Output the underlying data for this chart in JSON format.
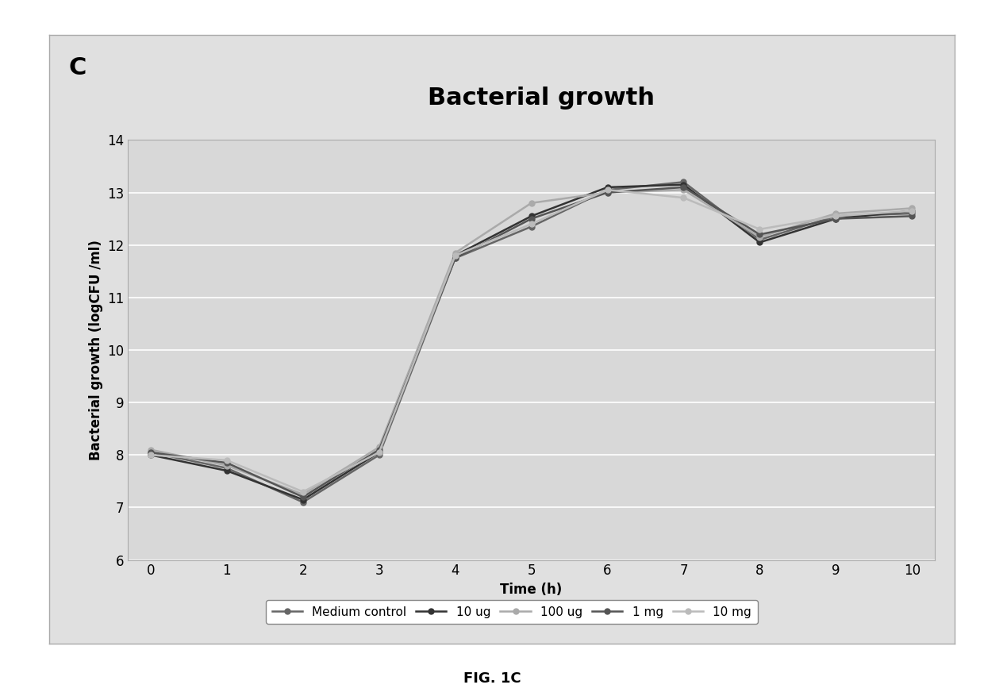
{
  "title": "Bacterial growth",
  "panel_label": "C",
  "xlabel": "Time (h)",
  "ylabel": "Bacterial growth (logCFU /ml)",
  "fig_label": "FIG. 1C",
  "x": [
    0,
    1,
    2,
    3,
    4,
    5,
    6,
    7,
    8,
    9,
    10
  ],
  "series": {
    "Medium control": [
      8.05,
      7.75,
      7.1,
      8.0,
      11.75,
      12.35,
      13.05,
      13.2,
      12.1,
      12.55,
      12.6
    ],
    "10 ug": [
      8.0,
      7.7,
      7.15,
      8.05,
      11.8,
      12.55,
      13.1,
      13.15,
      12.05,
      12.5,
      12.65
    ],
    "100 ug": [
      8.1,
      7.8,
      7.25,
      8.15,
      11.85,
      12.8,
      13.0,
      13.05,
      12.15,
      12.6,
      12.7
    ],
    "1 mg": [
      8.05,
      7.85,
      7.2,
      8.1,
      11.75,
      12.5,
      13.0,
      13.1,
      12.2,
      12.5,
      12.55
    ],
    "10 mg": [
      8.0,
      7.9,
      7.3,
      8.05,
      11.8,
      12.4,
      13.05,
      12.9,
      12.3,
      12.55,
      12.65
    ]
  },
  "colors": {
    "Medium control": "#666666",
    "10 ug": "#333333",
    "100 ug": "#aaaaaa",
    "1 mg": "#555555",
    "10 mg": "#bbbbbb"
  },
  "ylim": [
    6,
    14
  ],
  "yticks": [
    6,
    7,
    8,
    9,
    10,
    11,
    12,
    13,
    14
  ],
  "xticks": [
    0,
    1,
    2,
    3,
    4,
    5,
    6,
    7,
    8,
    9,
    10
  ],
  "plot_bg_color": "#d8d8d8",
  "fig_bg_color": "#ffffff",
  "outer_bg_color": "#e0e0e0",
  "grid_color": "#ffffff",
  "border_color": "#aaaaaa",
  "title_fontsize": 22,
  "label_fontsize": 12,
  "tick_fontsize": 12,
  "legend_fontsize": 11,
  "panel_label_fontsize": 22
}
